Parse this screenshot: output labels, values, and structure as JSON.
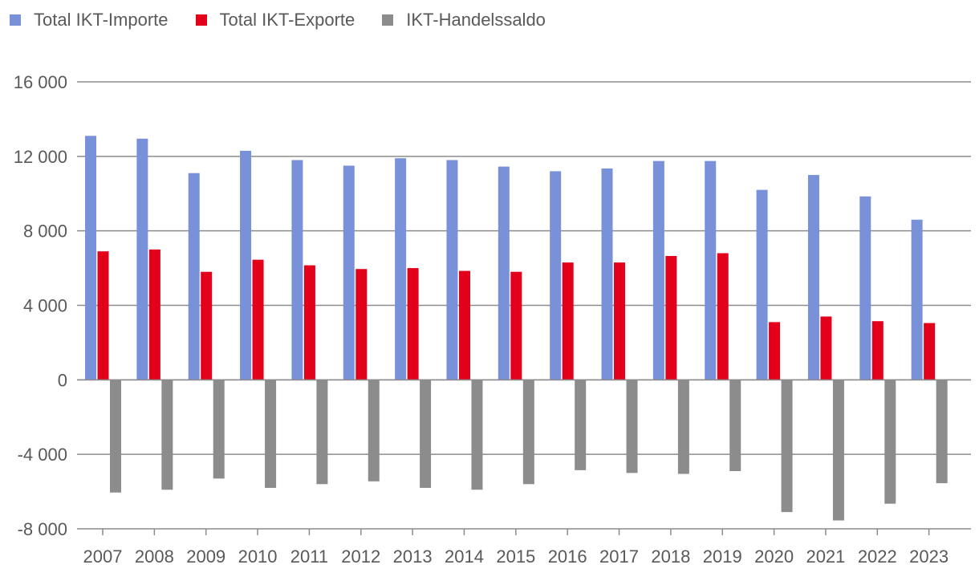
{
  "chart_data": {
    "type": "bar",
    "title": "",
    "xlabel": "",
    "ylabel": "",
    "ylim": [
      -8000,
      16000
    ],
    "yticks": [
      16000,
      12000,
      8000,
      4000,
      0,
      -4000,
      -8000
    ],
    "ytick_labels": [
      "16 000",
      "12 000",
      "8 000",
      "4 000",
      "0",
      "-4 000",
      "-8 000"
    ],
    "grid": true,
    "legend_position": "top-left",
    "categories": [
      "2007",
      "2008",
      "2009",
      "2010",
      "2011",
      "2012",
      "2013",
      "2014",
      "2015",
      "2016",
      "2017",
      "2018",
      "2019",
      "2020",
      "2021",
      "2022",
      "2023"
    ],
    "series": [
      {
        "name": "Total IKT-Importe",
        "color": "#7891d8",
        "values": [
          13100,
          12950,
          11100,
          12300,
          11800,
          11500,
          11900,
          11800,
          11450,
          11200,
          11350,
          11750,
          11750,
          10200,
          11000,
          9850,
          8600
        ]
      },
      {
        "name": "Total IKT-Exporte",
        "color": "#e2001a",
        "values": [
          6900,
          7000,
          5800,
          6450,
          6150,
          5950,
          6000,
          5850,
          5800,
          6300,
          6300,
          6650,
          6800,
          3100,
          3400,
          3150,
          3050
        ]
      },
      {
        "name": "IKT-Handelssaldo",
        "color": "#8c8c8c",
        "values": [
          -6050,
          -5900,
          -5300,
          -5800,
          -5600,
          -5450,
          -5800,
          -5900,
          -5600,
          -4850,
          -5000,
          -5050,
          -4900,
          -7100,
          -7550,
          -6650,
          -5550
        ]
      }
    ]
  }
}
